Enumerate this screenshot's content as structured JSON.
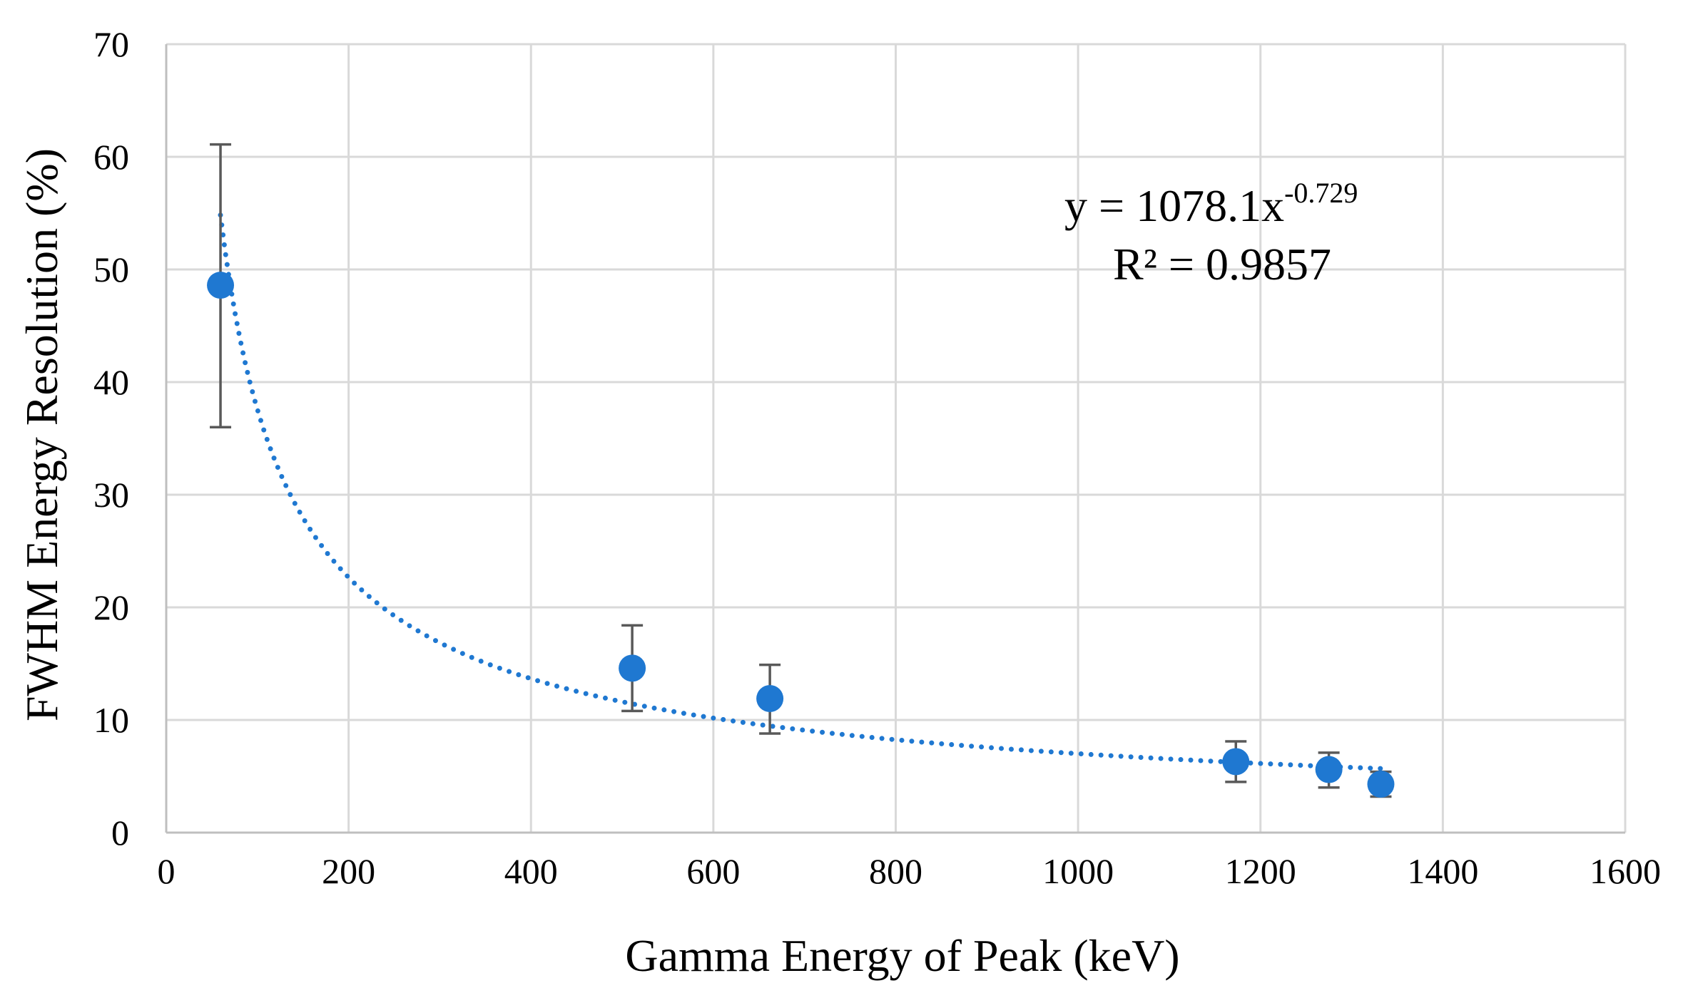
{
  "chart_data": {
    "type": "scatter",
    "title": "",
    "xlabel": "Gamma Energy of Peak (keV)",
    "ylabel": "FWHM Energy Resolution (%)",
    "xlim": [
      0,
      1600
    ],
    "ylim": [
      0,
      70
    ],
    "x_ticks": [
      "0",
      "200",
      "400",
      "600",
      "800",
      "1000",
      "1200",
      "1400",
      "1600"
    ],
    "y_ticks": [
      "0",
      "10",
      "20",
      "30",
      "40",
      "50",
      "60",
      "70"
    ],
    "grid": true,
    "marker_color": "#1f78d1",
    "trendline_color": "#1f78d1",
    "errorbar_color": "#595959",
    "series": [
      {
        "points": [
          {
            "x": 59.5,
            "y": 48.6,
            "err_low": 12.6,
            "err_high": 12.5
          },
          {
            "x": 511,
            "y": 14.6,
            "err_low": 3.8,
            "err_high": 3.8
          },
          {
            "x": 662,
            "y": 11.9,
            "err_low": 3.1,
            "err_high": 3.0
          },
          {
            "x": 1173,
            "y": 6.3,
            "err_low": 1.8,
            "err_high": 1.8
          },
          {
            "x": 1275,
            "y": 5.6,
            "err_low": 1.6,
            "err_high": 1.5
          },
          {
            "x": 1332,
            "y": 4.3,
            "err_low": 1.1,
            "err_high": 1.1
          }
        ]
      }
    ],
    "trendline": {
      "type": "power",
      "coefficient": 1078.1,
      "exponent": -0.729,
      "x_range": [
        59.5,
        1332
      ],
      "equation_base": "y = 1078.1x",
      "equation_exponent": "-0.729",
      "r_squared_label": "R² = 0.9857"
    }
  }
}
